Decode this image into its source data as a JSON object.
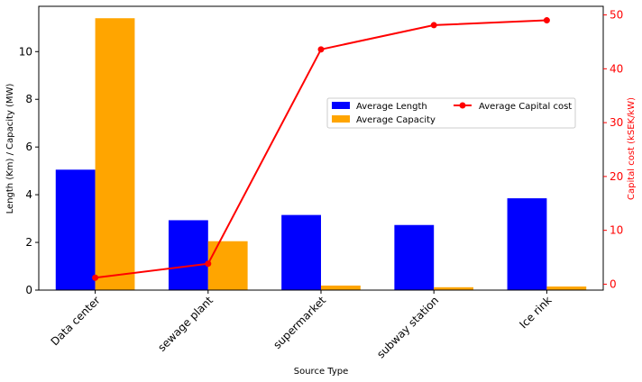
{
  "chart_data": {
    "type": "bar",
    "xlabel": "Source Type",
    "ylabel": "Length (Km) / Capacity (MW)",
    "y2label": "Capital cost (kSEK/kW)",
    "categories": [
      "Data center",
      "sewage plant",
      "supermarket",
      "subway station",
      "Ice rink"
    ],
    "ylim": [
      0,
      11.9
    ],
    "y2lim": [
      -1.1,
      51.6
    ],
    "yticks": [
      0,
      2,
      4,
      6,
      8,
      10
    ],
    "y2ticks": [
      0,
      10,
      20,
      30,
      40,
      50
    ],
    "series": [
      {
        "name": "Average Length",
        "type": "bar",
        "axis": "left",
        "color": "#0000ff",
        "values": [
          5.05,
          2.93,
          3.15,
          2.73,
          3.85
        ]
      },
      {
        "name": "Average Capacity",
        "type": "bar",
        "axis": "left",
        "color": "#ffa500",
        "values": [
          11.4,
          2.05,
          0.19,
          0.12,
          0.15
        ]
      },
      {
        "name": "Average Capital cost",
        "type": "line",
        "axis": "right",
        "color": "#ff0000",
        "values": [
          1.2,
          3.8,
          43.6,
          48.1,
          49.0
        ]
      }
    ],
    "legend_position": "center-right",
    "grid": false
  }
}
